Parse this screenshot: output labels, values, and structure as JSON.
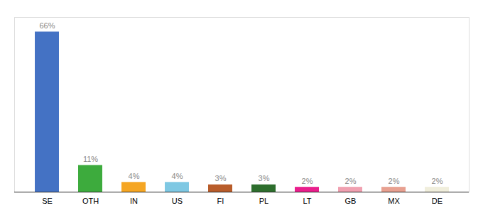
{
  "chart_data": {
    "type": "bar",
    "categories": [
      "SE",
      "OTH",
      "IN",
      "US",
      "FI",
      "PL",
      "LT",
      "GB",
      "MX",
      "DE"
    ],
    "values": [
      66,
      11,
      4,
      4,
      3,
      3,
      2,
      2,
      2,
      2
    ],
    "value_labels": [
      "66%",
      "11%",
      "4%",
      "4%",
      "3%",
      "3%",
      "2%",
      "2%",
      "2%",
      "2%"
    ],
    "colors": [
      "#4472c4",
      "#3dab3d",
      "#f5a623",
      "#7ec8e3",
      "#b85c2a",
      "#2d6e2d",
      "#e91e8c",
      "#f0a0b0",
      "#e8a090",
      "#f0eedc"
    ],
    "ylim": [
      0,
      72
    ],
    "data_labels": true,
    "tick_labels": "x",
    "grid": false
  }
}
